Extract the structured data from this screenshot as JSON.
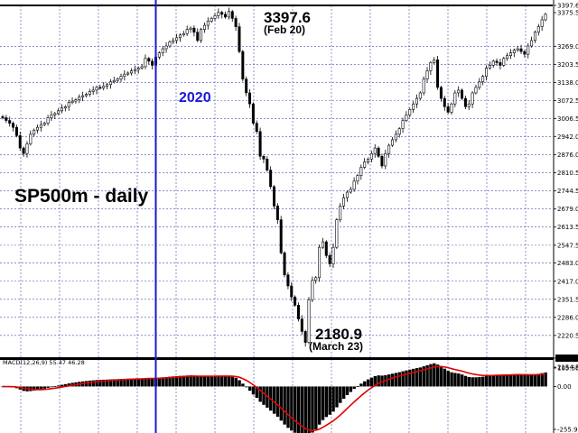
{
  "chart_data": {
    "type": "candlestick",
    "title": "SP500m - daily",
    "timeframe": "daily",
    "symbol": "SP500m",
    "price_axis": {
      "range": [
        2154.5,
        3397.6
      ],
      "tick_labels": [
        "3397.6",
        "3375.5",
        "3269.0",
        "3203.5",
        "3138.0",
        "3072.5",
        "3006.5",
        "2942.0",
        "2876.0",
        "2810.5",
        "2744.5",
        "2679.0",
        "2613.5",
        "2547.5",
        "2483.0",
        "2417.0",
        "2351.5",
        "2286.0",
        "2220.5",
        "2180.9",
        "2154.5"
      ],
      "grid": true
    },
    "annotations": {
      "high_value": "3397.6",
      "high_date": "(Feb 20)",
      "low_value": "2180.9",
      "low_date": "(March 23)",
      "year_marker": "2020"
    },
    "key_points": [
      {
        "label": "(Feb 20)",
        "value": 3397.6
      },
      {
        "label": "(March 23)",
        "value": 2180.9
      }
    ],
    "path_closes": [
      3010,
      3000,
      2990,
      2975,
      2945,
      2900,
      2880,
      2915,
      2950,
      2965,
      2975,
      2985,
      2990,
      3010,
      3020,
      3025,
      3035,
      3045,
      3050,
      3065,
      3070,
      3075,
      3085,
      3090,
      3095,
      3105,
      3110,
      3120,
      3118,
      3125,
      3130,
      3140,
      3145,
      3150,
      3160,
      3168,
      3172,
      3180,
      3185,
      3190,
      3195,
      3225,
      3215,
      3200,
      3230,
      3245,
      3260,
      3270,
      3285,
      3290,
      3300,
      3310,
      3315,
      3330,
      3335,
      3320,
      3290,
      3330,
      3345,
      3360,
      3370,
      3380,
      3392,
      3385,
      3375,
      3395,
      3370,
      3340,
      3250,
      3150,
      3100,
      3060,
      2990,
      2960,
      2870,
      2860,
      2820,
      2760,
      2690,
      2640,
      2520,
      2440,
      2400,
      2360,
      2330,
      2280,
      2235,
      2195,
      2350,
      2420,
      2430,
      2540,
      2560,
      2510,
      2480,
      2540,
      2640,
      2690,
      2720,
      2740,
      2750,
      2780,
      2800,
      2830,
      2850,
      2860,
      2880,
      2900,
      2870,
      2835,
      2880,
      2910,
      2930,
      2950,
      2970,
      3000,
      3020,
      3040,
      3060,
      3080,
      3100,
      3150,
      3180,
      3210,
      3220,
      3120,
      3080,
      3050,
      3030,
      3060,
      3100,
      3110,
      3080,
      3050,
      3060,
      3100,
      3120,
      3140,
      3160,
      3190,
      3200,
      3215,
      3210,
      3200,
      3225,
      3235,
      3245,
      3255,
      3260,
      3250,
      3240,
      3270,
      3290,
      3320,
      3340,
      3365,
      3385
    ],
    "indicator": {
      "name": "MACD",
      "params_label": "MACD(12,26,9) 55.47 46.28",
      "params": [
        12,
        26,
        9
      ],
      "macd": 55.47,
      "signal": 46.28,
      "axis_labels": [
        "105.56",
        "0.00",
        "-255.99"
      ],
      "range": [
        -255.99,
        105.56
      ],
      "histogram_color": "#000000",
      "signal_color": "#e00000"
    },
    "colors": {
      "candles": "#000000",
      "grid": "#4a4ab0",
      "year_line": "#1a1ad6",
      "background": "#ffffff"
    },
    "legend": "none"
  }
}
